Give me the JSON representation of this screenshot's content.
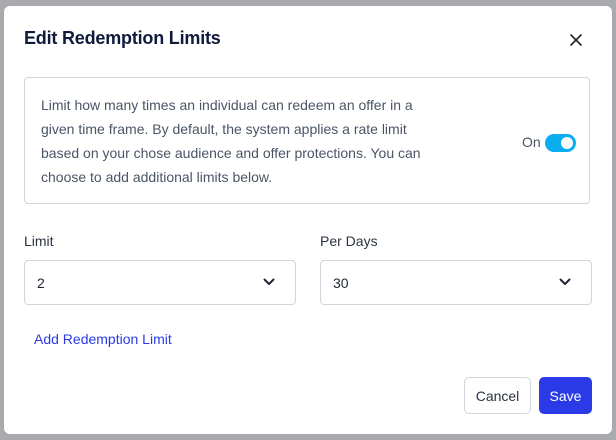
{
  "modal": {
    "title": "Edit Redemption Limits",
    "close_icon": "close-icon",
    "info_text": "Limit how many times an individual can redeem an offer in a given time frame. By default, the system applies a rate limit based on your chose audience and offer protections. You can choose to add additional limits below.",
    "toggle": {
      "label": "On",
      "checked": true,
      "color": "#0aaef0"
    },
    "limit": {
      "label": "Limit",
      "value": "2"
    },
    "per_days": {
      "label": "Per Days",
      "value": "30"
    },
    "add_link": "Add Redemption Limit",
    "cancel_label": "Cancel",
    "save_label": "Save",
    "accent": "#2a3ae6"
  }
}
